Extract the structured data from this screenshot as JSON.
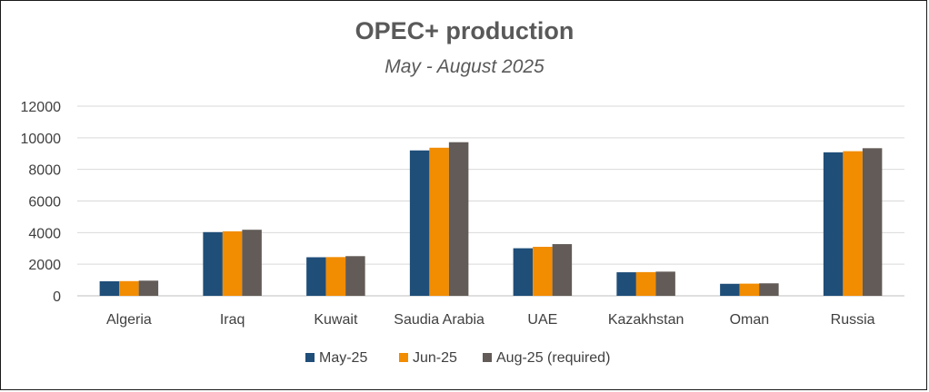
{
  "chart_data": {
    "type": "bar",
    "title": "OPEC+ production",
    "subtitle": "May - August 2025",
    "xlabel": "",
    "ylabel": "",
    "ylim": [
      0,
      12000
    ],
    "yticks": [
      0,
      2000,
      4000,
      6000,
      8000,
      10000,
      12000
    ],
    "grid": true,
    "legend_position": "bottom",
    "categories": [
      "Algeria",
      "Iraq",
      "Kuwait",
      "Saudia Arabia",
      "UAE",
      "Kazakhstan",
      "Oman",
      "Russia"
    ],
    "series": [
      {
        "name": "May-25",
        "color": "#1f4e79",
        "values": [
          920,
          4030,
          2440,
          9200,
          3010,
          1490,
          760,
          9080
        ]
      },
      {
        "name": "Jun-25",
        "color": "#f28c00",
        "values": [
          930,
          4080,
          2450,
          9370,
          3100,
          1500,
          770,
          9150
        ]
      },
      {
        "name": "Aug-25 (required)",
        "color": "#625b57",
        "values": [
          960,
          4180,
          2510,
          9720,
          3270,
          1530,
          790,
          9340
        ]
      }
    ]
  }
}
